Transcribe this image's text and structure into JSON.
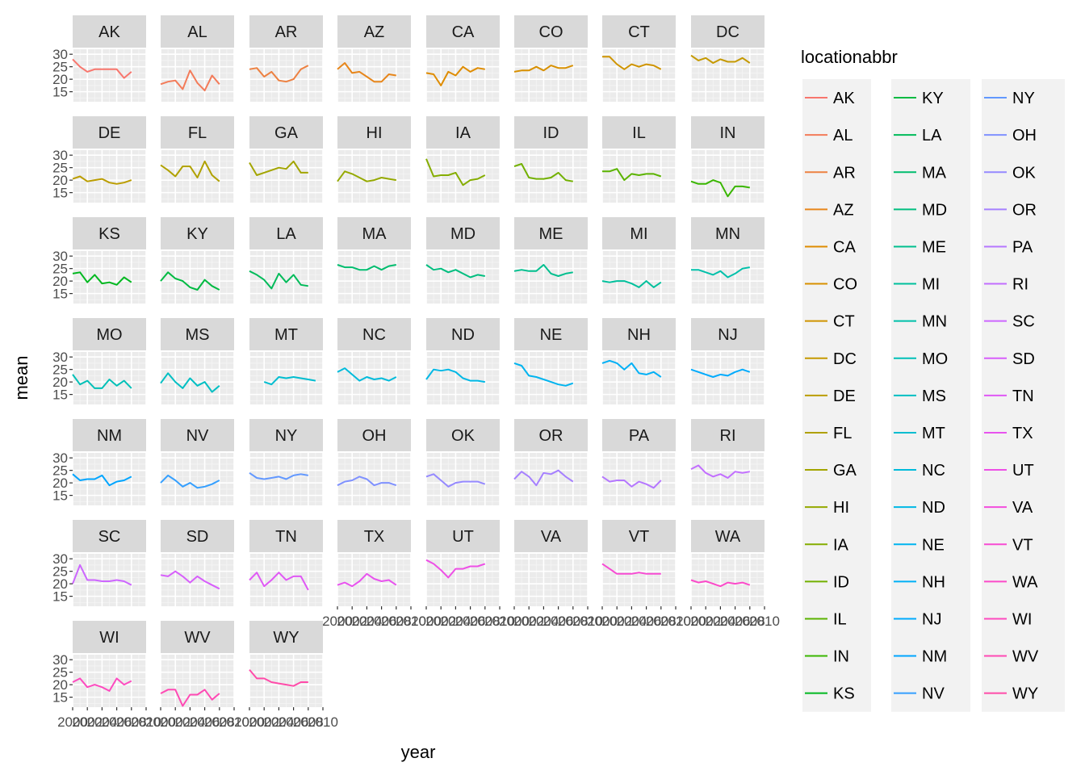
{
  "chart_data": {
    "type": "line",
    "layout": "facet-wrap",
    "ncol": 8,
    "xlabel": "year",
    "ylabel": "mean",
    "xlim": [
      2000,
      2010
    ],
    "ylim": [
      11,
      32
    ],
    "x_ticks": [
      2000,
      2002,
      2004,
      2006,
      2008,
      2010
    ],
    "x_tick_labels": [
      "2000",
      "2002",
      "2004",
      "2006",
      "2008",
      "2010"
    ],
    "y_ticks": [
      15,
      20,
      25,
      30
    ],
    "y_tick_labels": [
      "15",
      "20",
      "25",
      "30"
    ],
    "grid": true,
    "legend": {
      "title": "locationabbr",
      "position": "right",
      "ncol": 3
    },
    "x": [
      2000,
      2001,
      2002,
      2003,
      2004,
      2005,
      2006,
      2007,
      2008,
      2009,
      2010
    ],
    "series": [
      {
        "name": "AK",
        "color": "#F8766D",
        "values": [
          28,
          25,
          23,
          24,
          24,
          24,
          24,
          20.5,
          23,
          null,
          null
        ]
      },
      {
        "name": "AL",
        "color": "#F37B59",
        "values": [
          18,
          19,
          19.5,
          16,
          23.5,
          18.5,
          15.5,
          21.5,
          18,
          null,
          null
        ]
      },
      {
        "name": "AR",
        "color": "#ED8141",
        "values": [
          24,
          24.5,
          21,
          23,
          19.5,
          19,
          20,
          24,
          25.5,
          null,
          null
        ]
      },
      {
        "name": "AZ",
        "color": "#E7861B",
        "values": [
          24,
          26.5,
          22.5,
          23,
          21,
          19,
          19,
          22,
          21.5,
          null,
          null
        ]
      },
      {
        "name": "CA",
        "color": "#DF8C00",
        "values": [
          22.5,
          22,
          17.5,
          23,
          21.5,
          25,
          23,
          24.5,
          24,
          null,
          null
        ]
      },
      {
        "name": "CO",
        "color": "#D89000",
        "values": [
          23,
          23.5,
          23.5,
          25,
          23.5,
          25.5,
          24.5,
          24.5,
          25.5,
          null,
          null
        ]
      },
      {
        "name": "CT",
        "color": "#CF9400",
        "values": [
          29,
          29,
          26,
          24,
          26,
          25,
          26,
          25.5,
          24,
          null,
          null
        ]
      },
      {
        "name": "DC",
        "color": "#C59900",
        "values": [
          29.5,
          27.5,
          28.5,
          26.5,
          28,
          27,
          27,
          28.5,
          26.5,
          null,
          null
        ]
      },
      {
        "name": "DE",
        "color": "#BB9D00",
        "values": [
          20.5,
          21.5,
          19.5,
          20,
          20.5,
          19,
          18.5,
          19,
          20,
          null,
          null
        ]
      },
      {
        "name": "FL",
        "color": "#B0A100",
        "values": [
          26,
          24,
          21.5,
          25.5,
          25.5,
          21,
          27.5,
          22,
          19.5,
          null,
          null
        ]
      },
      {
        "name": "GA",
        "color": "#A3A500",
        "values": [
          27,
          22,
          23,
          24,
          25,
          24.5,
          27.5,
          23,
          23,
          null,
          null
        ]
      },
      {
        "name": "HI",
        "color": "#95A900",
        "values": [
          19.5,
          23.5,
          22.5,
          21,
          19.5,
          20,
          21,
          20.5,
          20,
          null,
          null
        ]
      },
      {
        "name": "IA",
        "color": "#85AD00",
        "values": [
          28.5,
          21.5,
          22,
          22,
          23,
          18,
          20,
          20.5,
          22,
          null,
          null
        ]
      },
      {
        "name": "ID",
        "color": "#72B000",
        "values": [
          25.5,
          26.5,
          21,
          20.5,
          20.5,
          21,
          23,
          20,
          19.5,
          null,
          null
        ]
      },
      {
        "name": "IL",
        "color": "#5BB300",
        "values": [
          23.5,
          23.5,
          24.5,
          20,
          22.5,
          22,
          22.5,
          22.5,
          21.5,
          null,
          null
        ]
      },
      {
        "name": "IN",
        "color": "#39B600",
        "values": [
          19.5,
          18.5,
          18.5,
          20,
          19,
          13.5,
          17.5,
          17.5,
          17,
          null,
          null
        ]
      },
      {
        "name": "KS",
        "color": "#00B81F",
        "values": [
          23,
          23.5,
          19.5,
          22.5,
          19,
          19.5,
          18.5,
          21.5,
          19.5,
          null,
          null
        ]
      },
      {
        "name": "KY",
        "color": "#00BA42",
        "values": [
          20,
          23.5,
          21,
          20,
          17.5,
          16.5,
          20.5,
          18,
          16.5,
          null,
          null
        ]
      },
      {
        "name": "LA",
        "color": "#00BB5A",
        "values": [
          24,
          22.5,
          20.5,
          17,
          23,
          19.5,
          22.5,
          18.5,
          18,
          null,
          null
        ]
      },
      {
        "name": "MA",
        "color": "#00BD6E",
        "values": [
          26.5,
          25.5,
          25.5,
          24.5,
          24.5,
          26,
          24.5,
          26,
          26.5,
          null,
          null
        ]
      },
      {
        "name": "MD",
        "color": "#00BE7F",
        "values": [
          26.5,
          24.5,
          25,
          23.5,
          24.5,
          23,
          21.5,
          22.5,
          22,
          null,
          null
        ]
      },
      {
        "name": "ME",
        "color": "#00BF8E",
        "values": [
          24,
          24.5,
          24,
          24,
          26.5,
          23,
          22,
          23,
          23.5,
          null,
          null
        ]
      },
      {
        "name": "MI",
        "color": "#00C09C",
        "values": [
          20,
          19.5,
          20,
          20,
          19,
          17.5,
          20,
          17.5,
          19.5,
          null,
          null
        ]
      },
      {
        "name": "MN",
        "color": "#00C0AA",
        "values": [
          24.5,
          24.5,
          23.5,
          22.5,
          24,
          21.5,
          23,
          25,
          25.5,
          null,
          null
        ]
      },
      {
        "name": "MO",
        "color": "#00C0B7",
        "values": [
          23,
          19,
          20.5,
          17.5,
          17.5,
          21,
          18.5,
          20.5,
          17.5,
          null,
          null
        ]
      },
      {
        "name": "MS",
        "color": "#00BFC3",
        "values": [
          19.5,
          23.5,
          20,
          17.5,
          21.5,
          18.5,
          20,
          16,
          18.5,
          null,
          null
        ]
      },
      {
        "name": "MT",
        "color": "#00BDD0",
        "values": [
          null,
          null,
          20,
          19,
          22,
          21.5,
          22,
          21.5,
          21,
          20.5,
          null
        ]
      },
      {
        "name": "NC",
        "color": "#00BBDB",
        "values": [
          24,
          25.5,
          23,
          20.5,
          22,
          21,
          21.5,
          20.5,
          22,
          null,
          null
        ]
      },
      {
        "name": "ND",
        "color": "#00B8E5",
        "values": [
          21,
          25,
          24.5,
          25,
          24,
          21.5,
          20.5,
          20.5,
          20,
          null,
          null
        ]
      },
      {
        "name": "NE",
        "color": "#00B4EF",
        "values": [
          27.5,
          26.5,
          22.5,
          22,
          21,
          20,
          19,
          18.5,
          19.5,
          null,
          null
        ]
      },
      {
        "name": "NH",
        "color": "#00B0F6",
        "values": [
          27.5,
          28.5,
          27.5,
          25,
          27.5,
          23.5,
          23,
          24,
          22,
          null,
          null
        ]
      },
      {
        "name": "NJ",
        "color": "#00ABFD",
        "values": [
          25,
          24,
          23,
          22,
          23,
          22.5,
          24,
          25,
          24,
          null,
          null
        ]
      },
      {
        "name": "NM",
        "color": "#00A5FF",
        "values": [
          23.5,
          21,
          21.5,
          21.5,
          23,
          19,
          20.5,
          21,
          22.5,
          null,
          null
        ]
      },
      {
        "name": "NV",
        "color": "#349FFF",
        "values": [
          20,
          23,
          21,
          18.5,
          20,
          18,
          18.5,
          19.5,
          21,
          null,
          null
        ]
      },
      {
        "name": "NY",
        "color": "#6298FF",
        "values": [
          24,
          22,
          21.5,
          22,
          22.5,
          21.5,
          23,
          23.5,
          23,
          null,
          null
        ]
      },
      {
        "name": "OH",
        "color": "#7F91FF",
        "values": [
          19,
          20.5,
          21,
          22.5,
          21.5,
          19,
          20,
          20,
          19,
          null,
          null
        ]
      },
      {
        "name": "OK",
        "color": "#9589FF",
        "values": [
          22.5,
          23.5,
          21,
          18.5,
          20,
          20.5,
          20.5,
          20.5,
          19.5,
          null,
          null
        ]
      },
      {
        "name": "OR",
        "color": "#A680FF",
        "values": [
          21.5,
          24.5,
          22.5,
          19,
          24,
          23.5,
          25,
          22.5,
          20.5,
          null,
          null
        ]
      },
      {
        "name": "PA",
        "color": "#B577FF",
        "values": [
          22.5,
          20.5,
          21,
          21,
          18.5,
          20.5,
          19.5,
          18,
          21,
          null,
          null
        ]
      },
      {
        "name": "RI",
        "color": "#C26EFF",
        "values": [
          25.5,
          27,
          24,
          22.5,
          23.5,
          22,
          24.5,
          24,
          24.5,
          null,
          null
        ]
      },
      {
        "name": "SC",
        "color": "#CD66FF",
        "values": [
          20,
          27.5,
          21.5,
          21.5,
          21,
          21,
          21.5,
          21,
          19.5,
          null,
          null
        ]
      },
      {
        "name": "SD",
        "color": "#D75EFB",
        "values": [
          23.5,
          23,
          25,
          23,
          20.5,
          23,
          21,
          19.5,
          18,
          null,
          null
        ]
      },
      {
        "name": "TN",
        "color": "#E058F5",
        "values": [
          21.5,
          24.5,
          19,
          21.5,
          24.5,
          21.5,
          23,
          23,
          17.5,
          null,
          null
        ]
      },
      {
        "name": "TX",
        "color": "#E853EE",
        "values": [
          19.5,
          20.5,
          19,
          21,
          24,
          22,
          21,
          21.5,
          19.5,
          null,
          null
        ]
      },
      {
        "name": "UT",
        "color": "#EE4FE6",
        "values": [
          29.5,
          28,
          25.5,
          22.5,
          26,
          26,
          27,
          27,
          28,
          null,
          null
        ]
      },
      {
        "name": "VA",
        "color": "#F34DDD",
        "values": [
          null,
          null,
          null,
          null,
          null,
          null,
          null,
          null,
          null,
          null,
          null
        ]
      },
      {
        "name": "VT",
        "color": "#F74BD3",
        "values": [
          28,
          26,
          24,
          24,
          24,
          24.5,
          24,
          24,
          24,
          null,
          null
        ]
      },
      {
        "name": "WA",
        "color": "#FB4AC9",
        "values": [
          21.5,
          20.5,
          21,
          20,
          19,
          20.5,
          20,
          20.5,
          19.5,
          null,
          null
        ]
      },
      {
        "name": "WI",
        "color": "#FD4ABF",
        "values": [
          21,
          22.5,
          19,
          20,
          19,
          17.5,
          22.5,
          20,
          21.5,
          null,
          null
        ]
      },
      {
        "name": "WV",
        "color": "#FF4AB4",
        "values": [
          16.5,
          18,
          18,
          11.5,
          16,
          16,
          18,
          14,
          16.5,
          null,
          null
        ]
      },
      {
        "name": "WY",
        "color": "#FF4BA9",
        "values": [
          26,
          22.5,
          22.5,
          21,
          20.5,
          20,
          19.5,
          21,
          21,
          null,
          null
        ]
      }
    ]
  }
}
